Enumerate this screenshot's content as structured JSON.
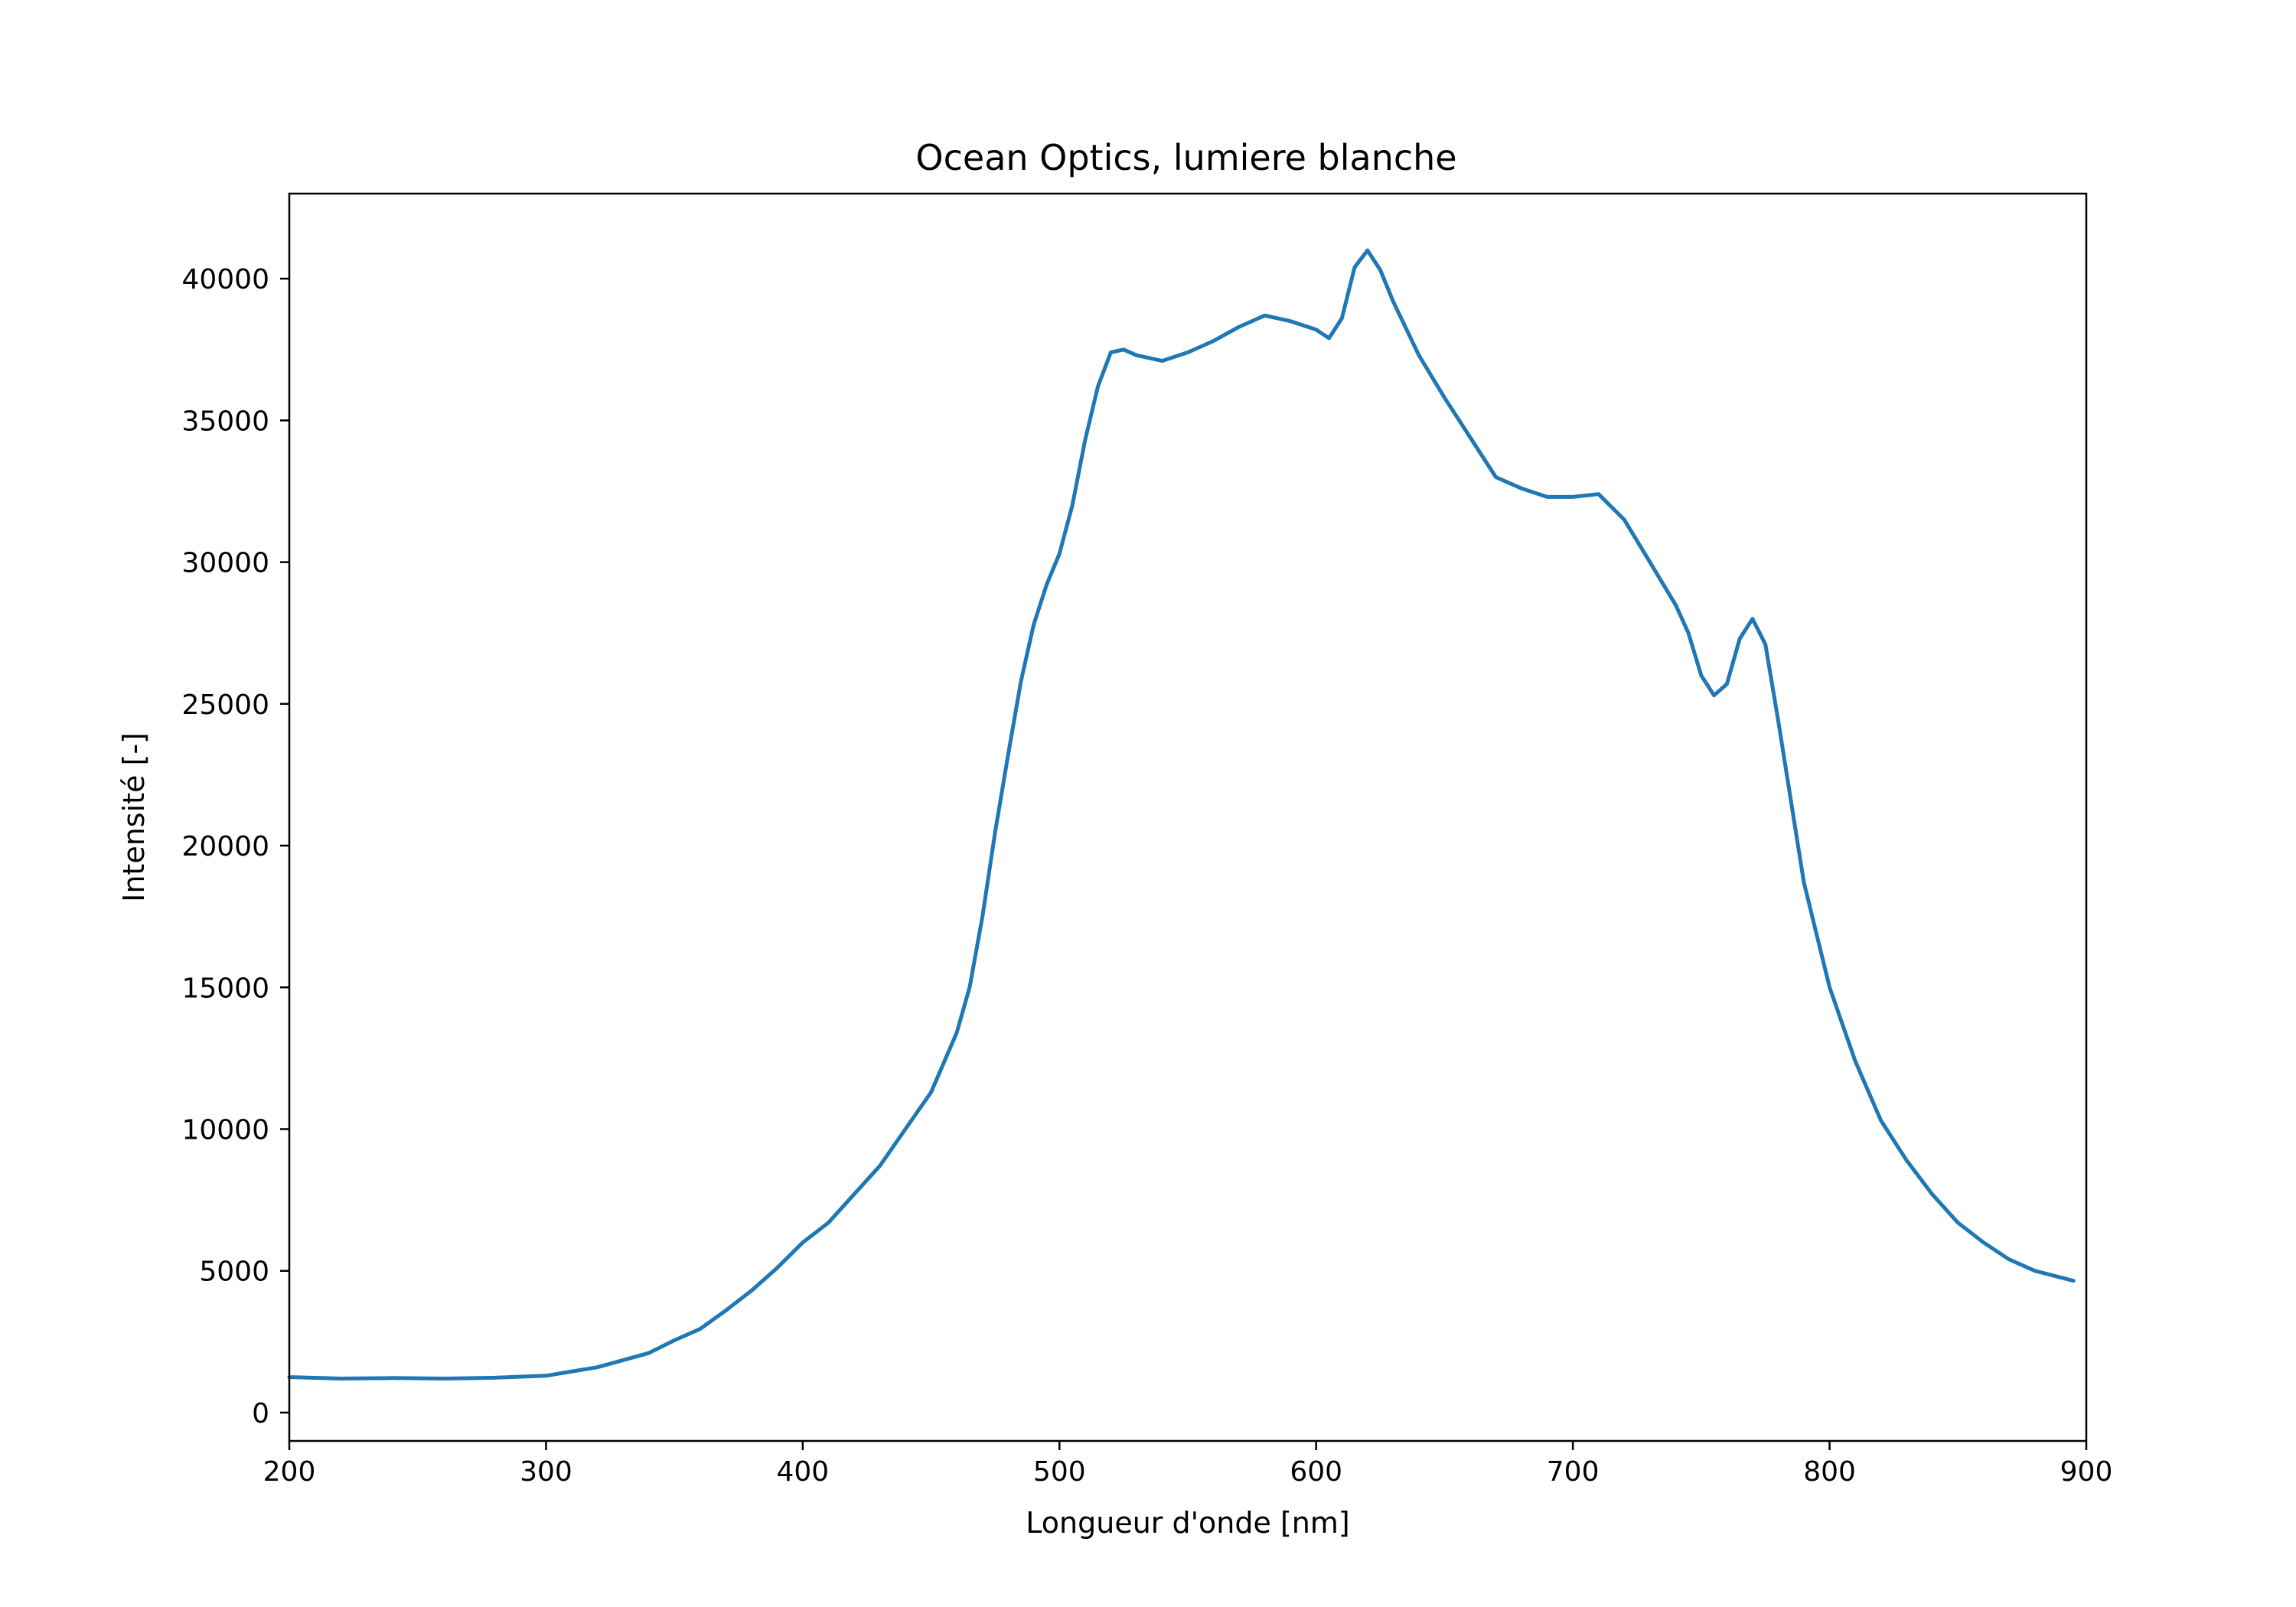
{
  "chart_data": {
    "type": "line",
    "title": "Ocean Optics, lumiere blanche",
    "xlabel": "Longueur d'onde [nm]",
    "ylabel": "Intensité [-]",
    "xlim": [
      200,
      900
    ],
    "ylim": [
      -1000,
      43000
    ],
    "xticks": [
      200,
      300,
      400,
      500,
      600,
      700,
      800,
      900
    ],
    "xtick_labels": [
      "200",
      "300",
      "400",
      "500",
      "600",
      "700",
      "800",
      "900"
    ],
    "yticks": [
      0,
      5000,
      10000,
      15000,
      20000,
      25000,
      30000,
      35000,
      40000
    ],
    "ytick_labels": [
      "0",
      "5000",
      "10000",
      "15000",
      "20000",
      "25000",
      "30000",
      "35000",
      "40000"
    ],
    "grid": false,
    "line_color": "#1f77b4",
    "series": [
      {
        "x": [
          200,
          220,
          240,
          260,
          280,
          300,
          320,
          340,
          350,
          360,
          370,
          380,
          390,
          400,
          410,
          420,
          430,
          440,
          450,
          460,
          465,
          470,
          475,
          480,
          485,
          490,
          495,
          500,
          505,
          510,
          515,
          520,
          525,
          530,
          540,
          550,
          560,
          570,
          580,
          590,
          600,
          605,
          610,
          615,
          620,
          625,
          630,
          640,
          650,
          660,
          670,
          680,
          690,
          700,
          710,
          720,
          730,
          740,
          745,
          750,
          755,
          760,
          765,
          770,
          775,
          780,
          790,
          800,
          810,
          820,
          830,
          840,
          850,
          860,
          870,
          880,
          895
        ],
        "y": [
          1250,
          1200,
          1220,
          1200,
          1230,
          1300,
          1600,
          2100,
          2550,
          2950,
          3600,
          4300,
          5100,
          6000,
          6700,
          7700,
          8700,
          10000,
          11300,
          13400,
          15000,
          17500,
          20500,
          23200,
          25800,
          27800,
          29200,
          30300,
          32000,
          34300,
          36200,
          37400,
          37500,
          37300,
          37100,
          37400,
          37800,
          38300,
          38700,
          38500,
          38200,
          37900,
          38600,
          40400,
          41000,
          40300,
          39200,
          37300,
          35800,
          34400,
          33000,
          32600,
          32300,
          32300,
          32400,
          31500,
          30000,
          28500,
          27500,
          26000,
          25300,
          25700,
          27300,
          28000,
          27100,
          24400,
          18700,
          15000,
          12400,
          10300,
          8900,
          7700,
          6700,
          6000,
          5400,
          5000,
          4650
        ]
      }
    ]
  }
}
